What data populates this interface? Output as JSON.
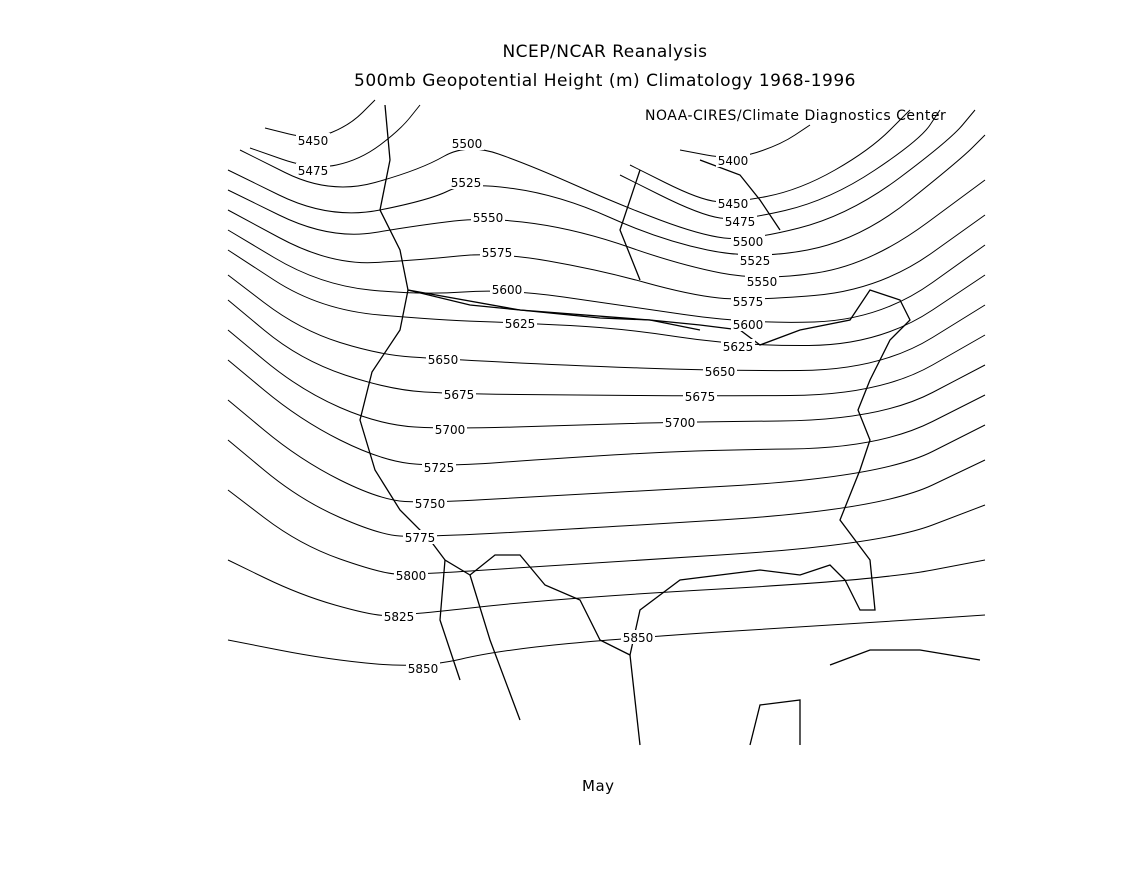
{
  "map": {
    "title": "NCEP/NCAR Reanalysis",
    "subtitle": "500mb Geopotential Height (m) Climatology 1968-1996",
    "credit": "NOAA-CIRES/Climate Diagnostics Center",
    "month": "May",
    "variable": "500mb geopotential height",
    "units": "m",
    "contour_interval": 25,
    "line_color": "#000000",
    "background": "#ffffff",
    "contours": [
      {
        "value": 5400,
        "label": "5400"
      },
      {
        "value": 5450,
        "label": "5450"
      },
      {
        "value": 5475,
        "label": "5475"
      },
      {
        "value": 5500,
        "label": "5500"
      },
      {
        "value": 5525,
        "label": "5525"
      },
      {
        "value": 5550,
        "label": "5550"
      },
      {
        "value": 5575,
        "label": "5575"
      },
      {
        "value": 5600,
        "label": "5600"
      },
      {
        "value": 5625,
        "label": "5625"
      },
      {
        "value": 5650,
        "label": "5650"
      },
      {
        "value": 5675,
        "label": "5675"
      },
      {
        "value": 5700,
        "label": "5700"
      },
      {
        "value": 5725,
        "label": "5725"
      },
      {
        "value": 5750,
        "label": "5750"
      },
      {
        "value": 5775,
        "label": "5775"
      },
      {
        "value": 5800,
        "label": "5800"
      },
      {
        "value": 5825,
        "label": "5825"
      },
      {
        "value": 5850,
        "label": "5850"
      }
    ]
  }
}
